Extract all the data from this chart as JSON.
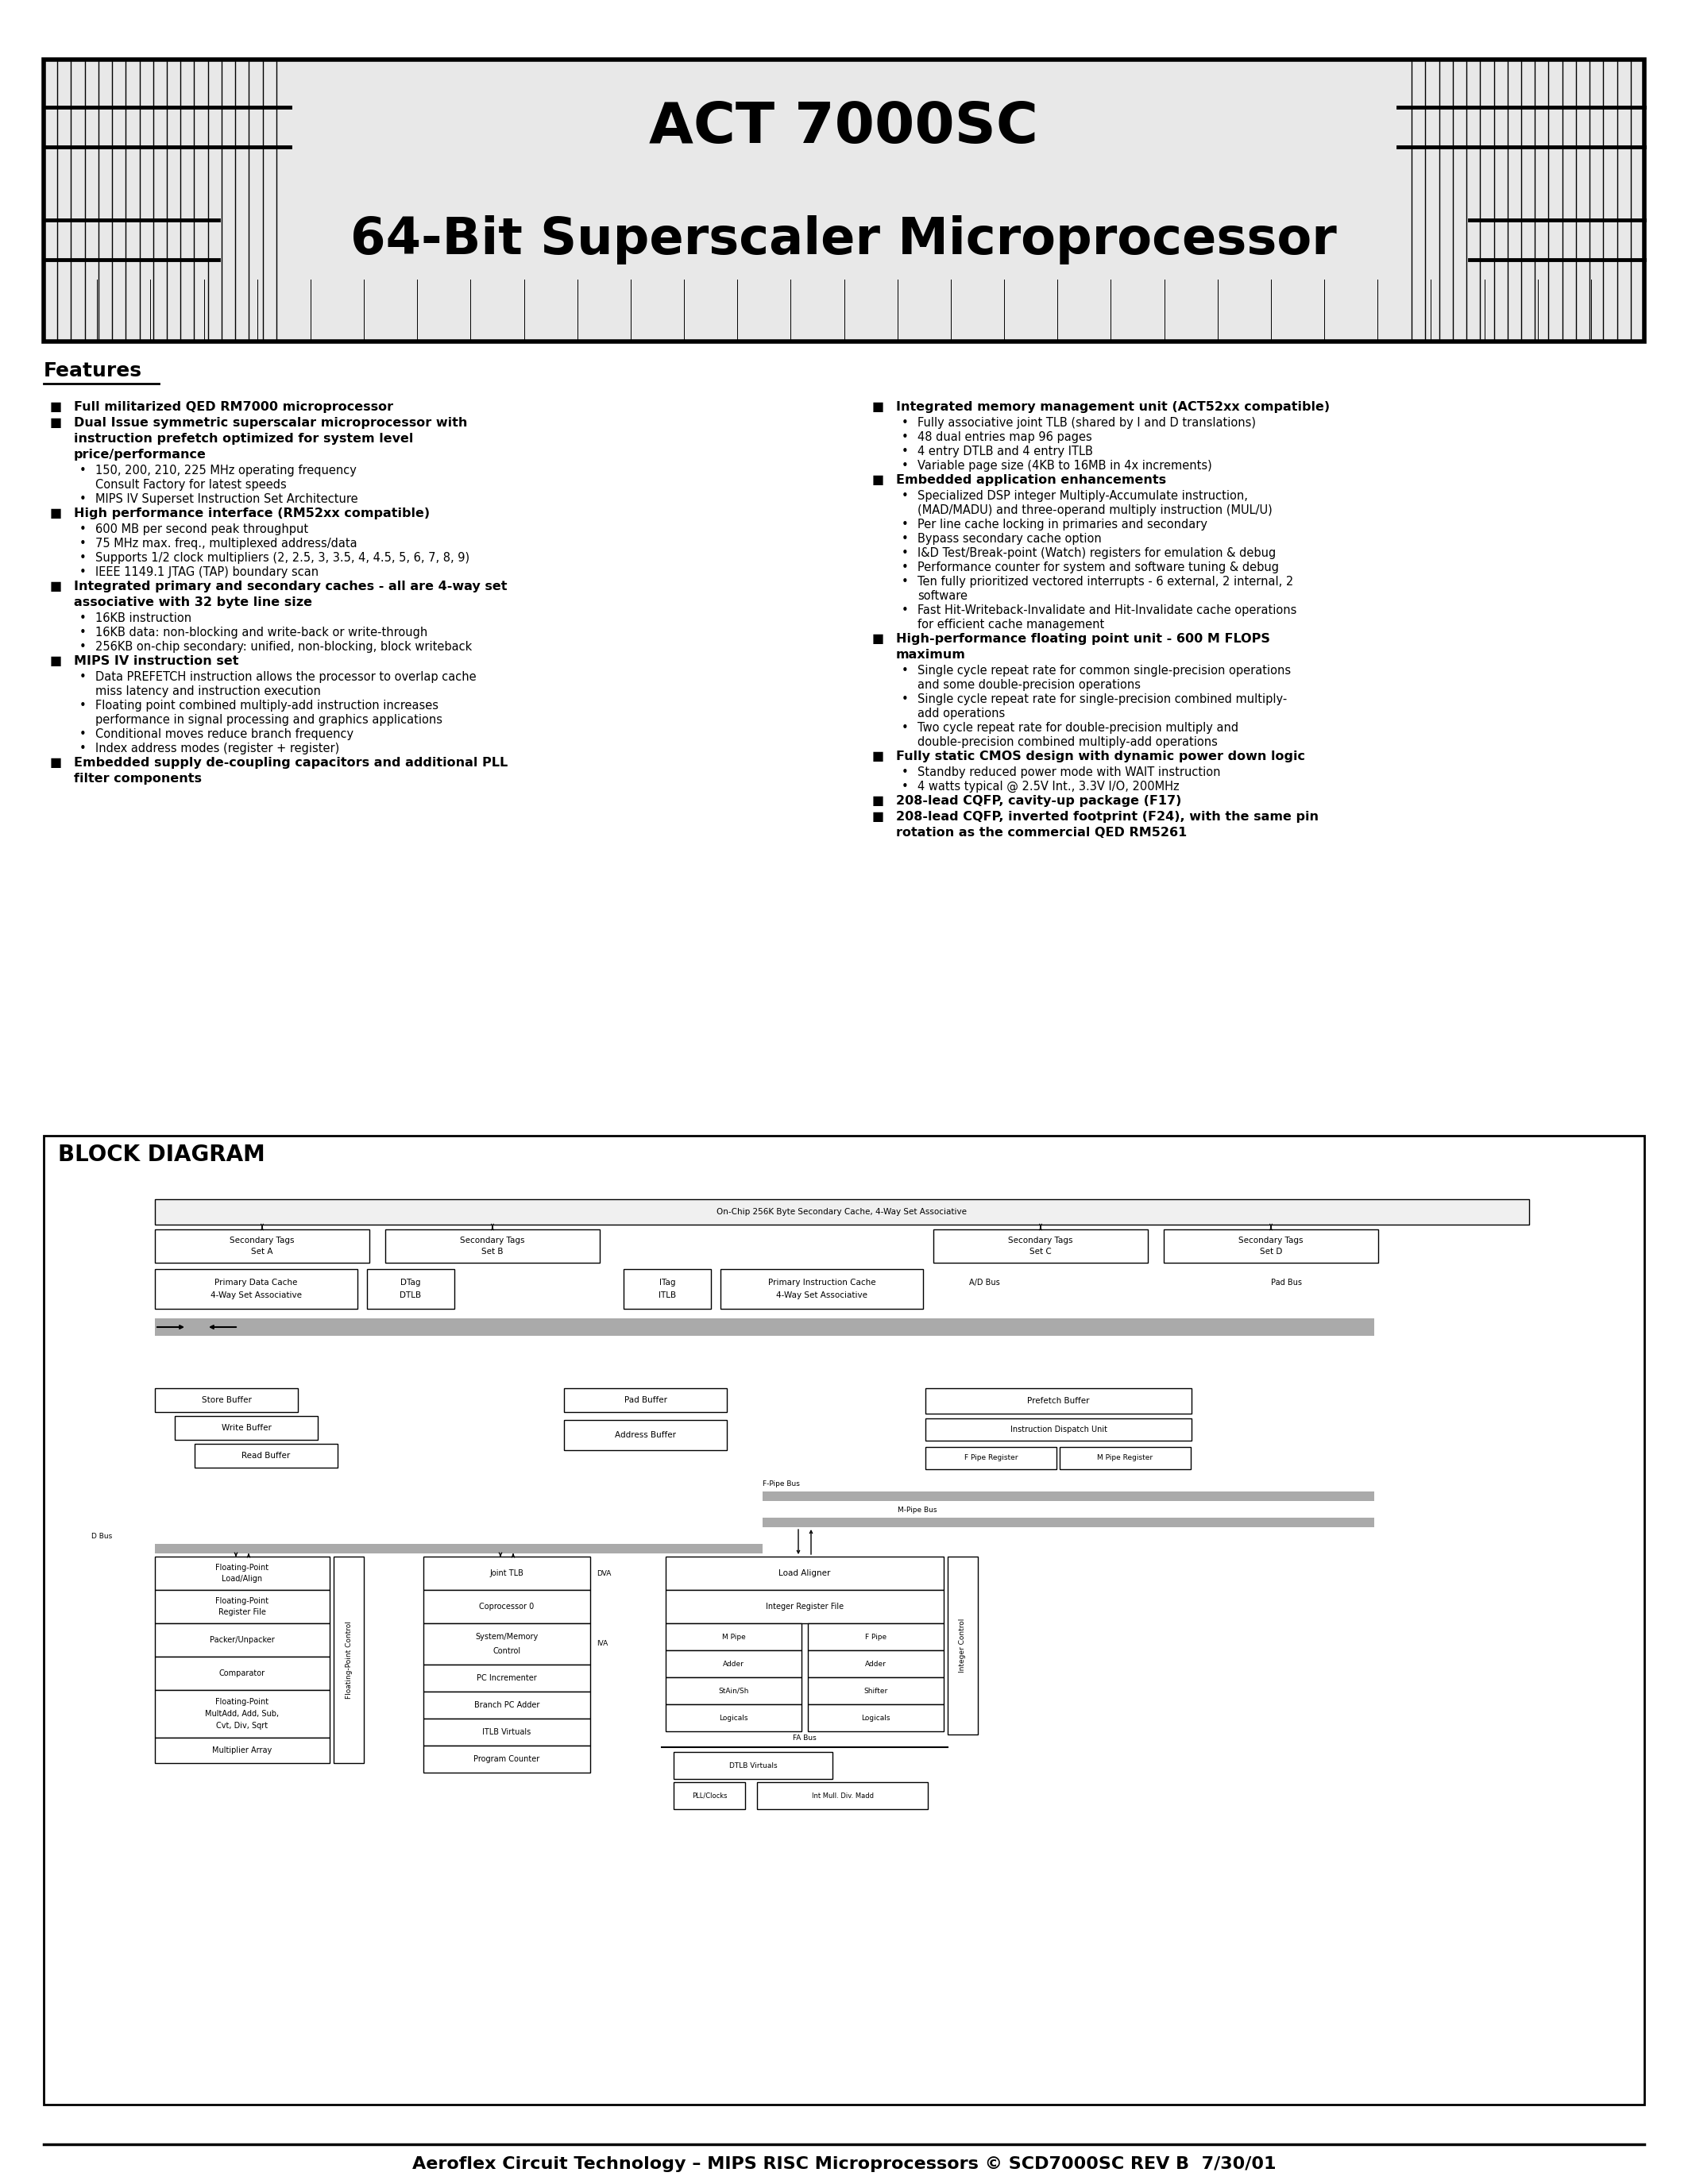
{
  "bg_color": "#ffffff",
  "header_title1": "ACT 7000SC",
  "header_title2": "64-Bit Superscaler Microprocessor",
  "features_title": "Features",
  "left_col_features": [
    {
      "type": "bullet",
      "text": "Full militarized QED RM7000 microprocessor"
    },
    {
      "type": "bullet",
      "text": "Dual Issue symmetric superscalar microprocessor with\ninstruction prefetch optimized for system level\nprice/performance"
    },
    {
      "type": "sub1",
      "text": "150, 200, 210, 225 MHz operating frequency\nConsult Factory for latest speeds"
    },
    {
      "type": "sub1",
      "text": "MIPS IV Superset Instruction Set Architecture"
    },
    {
      "type": "bullet",
      "text": "High performance interface (RM52xx compatible)"
    },
    {
      "type": "sub1",
      "text": "600 MB per second peak throughput"
    },
    {
      "type": "sub1",
      "text": "75 MHz max. freq., multiplexed address/data"
    },
    {
      "type": "sub1",
      "text": "Supports 1/2 clock multipliers (2, 2.5, 3, 3.5, 4, 4.5, 5, 6, 7, 8, 9)"
    },
    {
      "type": "sub1",
      "text": "IEEE 1149.1 JTAG (TAP) boundary scan"
    },
    {
      "type": "bullet",
      "text": "Integrated primary and secondary caches - all are 4-way set\nassociative with 32 byte line size"
    },
    {
      "type": "sub1",
      "text": "16KB instruction"
    },
    {
      "type": "sub1",
      "text": "16KB data: non-blocking and write-back or write-through"
    },
    {
      "type": "sub1",
      "text": "256KB on-chip secondary: unified, non-blocking, block writeback"
    },
    {
      "type": "bullet",
      "text": "MIPS IV instruction set"
    },
    {
      "type": "sub1",
      "text": "Data PREFETCH instruction allows the processor to overlap cache\nmiss latency and instruction execution"
    },
    {
      "type": "sub1",
      "text": "Floating point combined multiply-add instruction increases\nperformance in signal processing and graphics applications"
    },
    {
      "type": "sub1",
      "text": "Conditional moves reduce branch frequency"
    },
    {
      "type": "sub1",
      "text": "Index address modes (register + register)"
    },
    {
      "type": "bullet",
      "text": "Embedded supply de-coupling capacitors and additional PLL\nfilter components"
    }
  ],
  "right_col_features": [
    {
      "type": "bullet",
      "text": "Integrated memory management unit (ACT52xx compatible)"
    },
    {
      "type": "sub1",
      "text": "Fully associative joint TLB (shared by I and D translations)"
    },
    {
      "type": "sub1",
      "text": "48 dual entries map 96 pages"
    },
    {
      "type": "sub1",
      "text": "4 entry DTLB and 4 entry ITLB"
    },
    {
      "type": "sub1",
      "text": "Variable page size (4KB to 16MB in 4x increments)"
    },
    {
      "type": "bullet",
      "text": "Embedded application enhancements"
    },
    {
      "type": "sub1",
      "text": "Specialized DSP integer Multiply-Accumulate instruction,\n(MAD/MADU) and three-operand multiply instruction (MUL/U)"
    },
    {
      "type": "sub1",
      "text": "Per line cache locking in primaries and secondary"
    },
    {
      "type": "sub1",
      "text": "Bypass secondary cache option"
    },
    {
      "type": "sub1",
      "text": "I&D Test/Break-point (Watch) registers for emulation & debug"
    },
    {
      "type": "sub1",
      "text": "Performance counter for system and software tuning & debug"
    },
    {
      "type": "sub1",
      "text": "Ten fully prioritized vectored interrupts - 6 external, 2 internal, 2\nsoftware"
    },
    {
      "type": "sub1",
      "text": "Fast Hit-Writeback-Invalidate and Hit-Invalidate cache operations\nfor efficient cache management"
    },
    {
      "type": "bullet",
      "text": "High-performance floating point unit - 600 M FLOPS\nmaximum"
    },
    {
      "type": "sub1",
      "text": "Single cycle repeat rate for common single-precision operations\nand some double-precision operations"
    },
    {
      "type": "sub1",
      "text": "Single cycle repeat rate for single-precision combined multiply-\nadd operations"
    },
    {
      "type": "sub1",
      "text": "Two cycle repeat rate for double-precision multiply and\ndouble-precision combined multiply-add operations"
    },
    {
      "type": "bullet",
      "text": "Fully static CMOS design with dynamic power down logic"
    },
    {
      "type": "sub1",
      "text": "Standby reduced power mode with WAIT instruction"
    },
    {
      "type": "sub1",
      "text": "4 watts typical @ 2.5V Int., 3.3V I/O, 200MHz"
    },
    {
      "type": "bullet",
      "text": "208-lead CQFP, cavity-up package (F17)"
    },
    {
      "type": "bullet",
      "text": "208-lead CQFP, inverted footprint (F24), with the same pin\nrotation as the commercial QED RM5261"
    }
  ],
  "block_diagram_title": "BLOCK DIAGRAM",
  "footer_text": "Aeroflex Circuit Technology – MIPS RISC Microprocessors © SCD7000SC REV B  7/30/01"
}
